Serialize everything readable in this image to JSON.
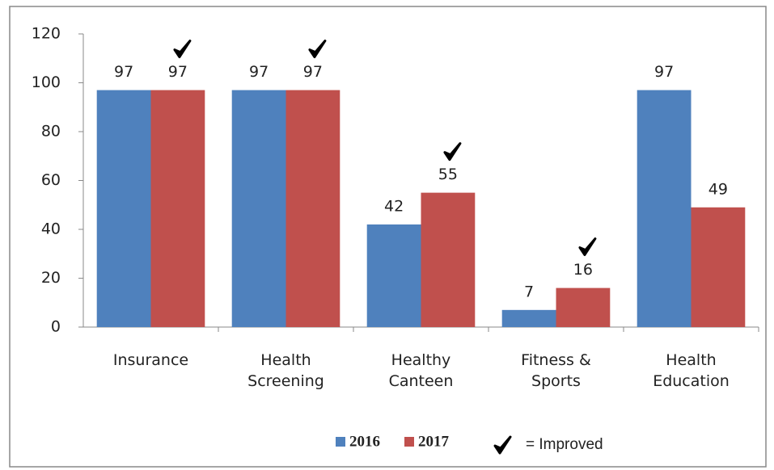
{
  "chart_data": {
    "type": "bar",
    "categories": [
      "Insurance",
      "Health Screening",
      "Healthy Canteen",
      "Fitness & Sports",
      "Health Education"
    ],
    "series": [
      {
        "name": "2016",
        "color": "#4f81bd",
        "values": [
          97,
          97,
          42,
          7,
          97
        ]
      },
      {
        "name": "2017",
        "color": "#c0504d",
        "values": [
          97,
          97,
          55,
          16,
          49
        ]
      }
    ],
    "improved": [
      true,
      true,
      true,
      true,
      false
    ],
    "annotation": "= Improved",
    "ylim": [
      0,
      120
    ],
    "yticks": [
      0,
      20,
      40,
      60,
      80,
      100,
      120
    ],
    "grid": false,
    "legend": "bottom"
  }
}
